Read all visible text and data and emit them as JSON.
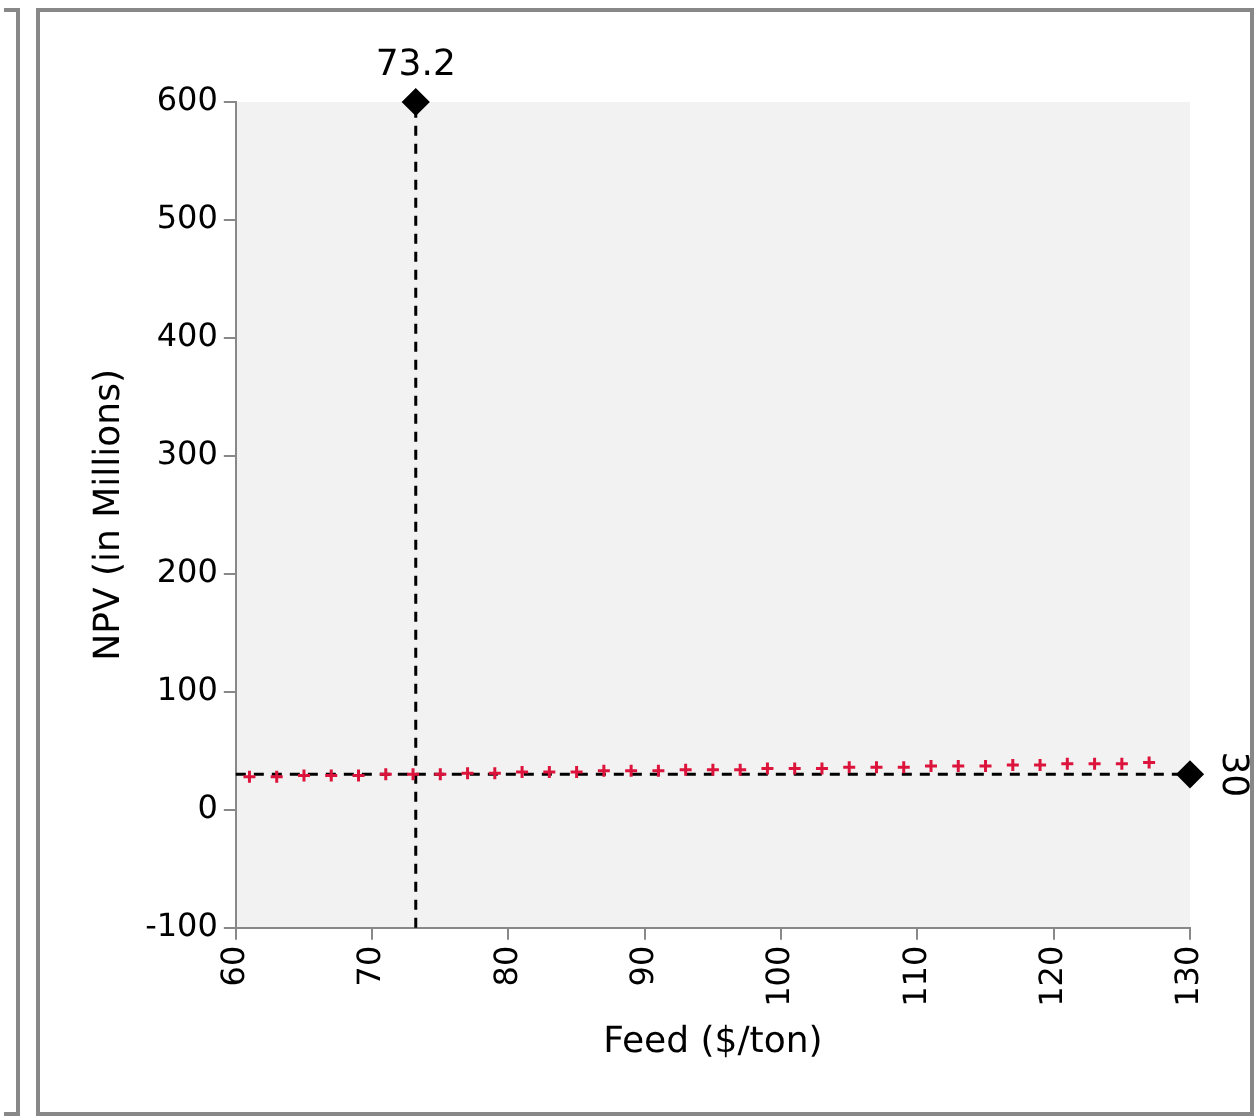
{
  "chart_data": {
    "type": "scatter",
    "xlabel": "Feed ($/ton)",
    "ylabel": "NPV (in Millions)",
    "xlim": [
      60,
      130
    ],
    "xticks": [
      60,
      70,
      80,
      90,
      100,
      110,
      120,
      130
    ],
    "ylim": [
      -100,
      600
    ],
    "yticks": [
      -100,
      0,
      100,
      200,
      300,
      400,
      500,
      600
    ],
    "grid": false,
    "legend": false,
    "marker": "cross",
    "series": [
      {
        "color": "#dc143c",
        "x": [
          61,
          63,
          65,
          67,
          69,
          71,
          73,
          75,
          77,
          79,
          81,
          83,
          85,
          87,
          89,
          91,
          93,
          95,
          97,
          99,
          101,
          103,
          105,
          107,
          109,
          111,
          113,
          115,
          117,
          119,
          121,
          123,
          125,
          127
        ],
        "values": [
          28,
          28,
          29,
          29,
          29,
          30,
          30,
          30,
          31,
          31,
          32,
          32,
          32,
          33,
          33,
          33,
          34,
          34,
          34,
          35,
          35,
          35,
          36,
          36,
          36,
          37,
          37,
          37,
          38,
          38,
          39,
          39,
          39,
          40
        ]
      },
      {
        "type": "scatter",
        "color": "#000000",
        "marker": "diamond",
        "x": [
          73.2,
          130
        ],
        "values": [
          600,
          30
        ]
      }
    ],
    "ref_lines": [
      {
        "axis": "x",
        "value": 73.2,
        "label": "73.2",
        "color": "#000000",
        "line_style": "dashed"
      },
      {
        "axis": "y",
        "value": 30,
        "label": "30",
        "color": "#000000",
        "line_style": "dashed"
      }
    ]
  }
}
